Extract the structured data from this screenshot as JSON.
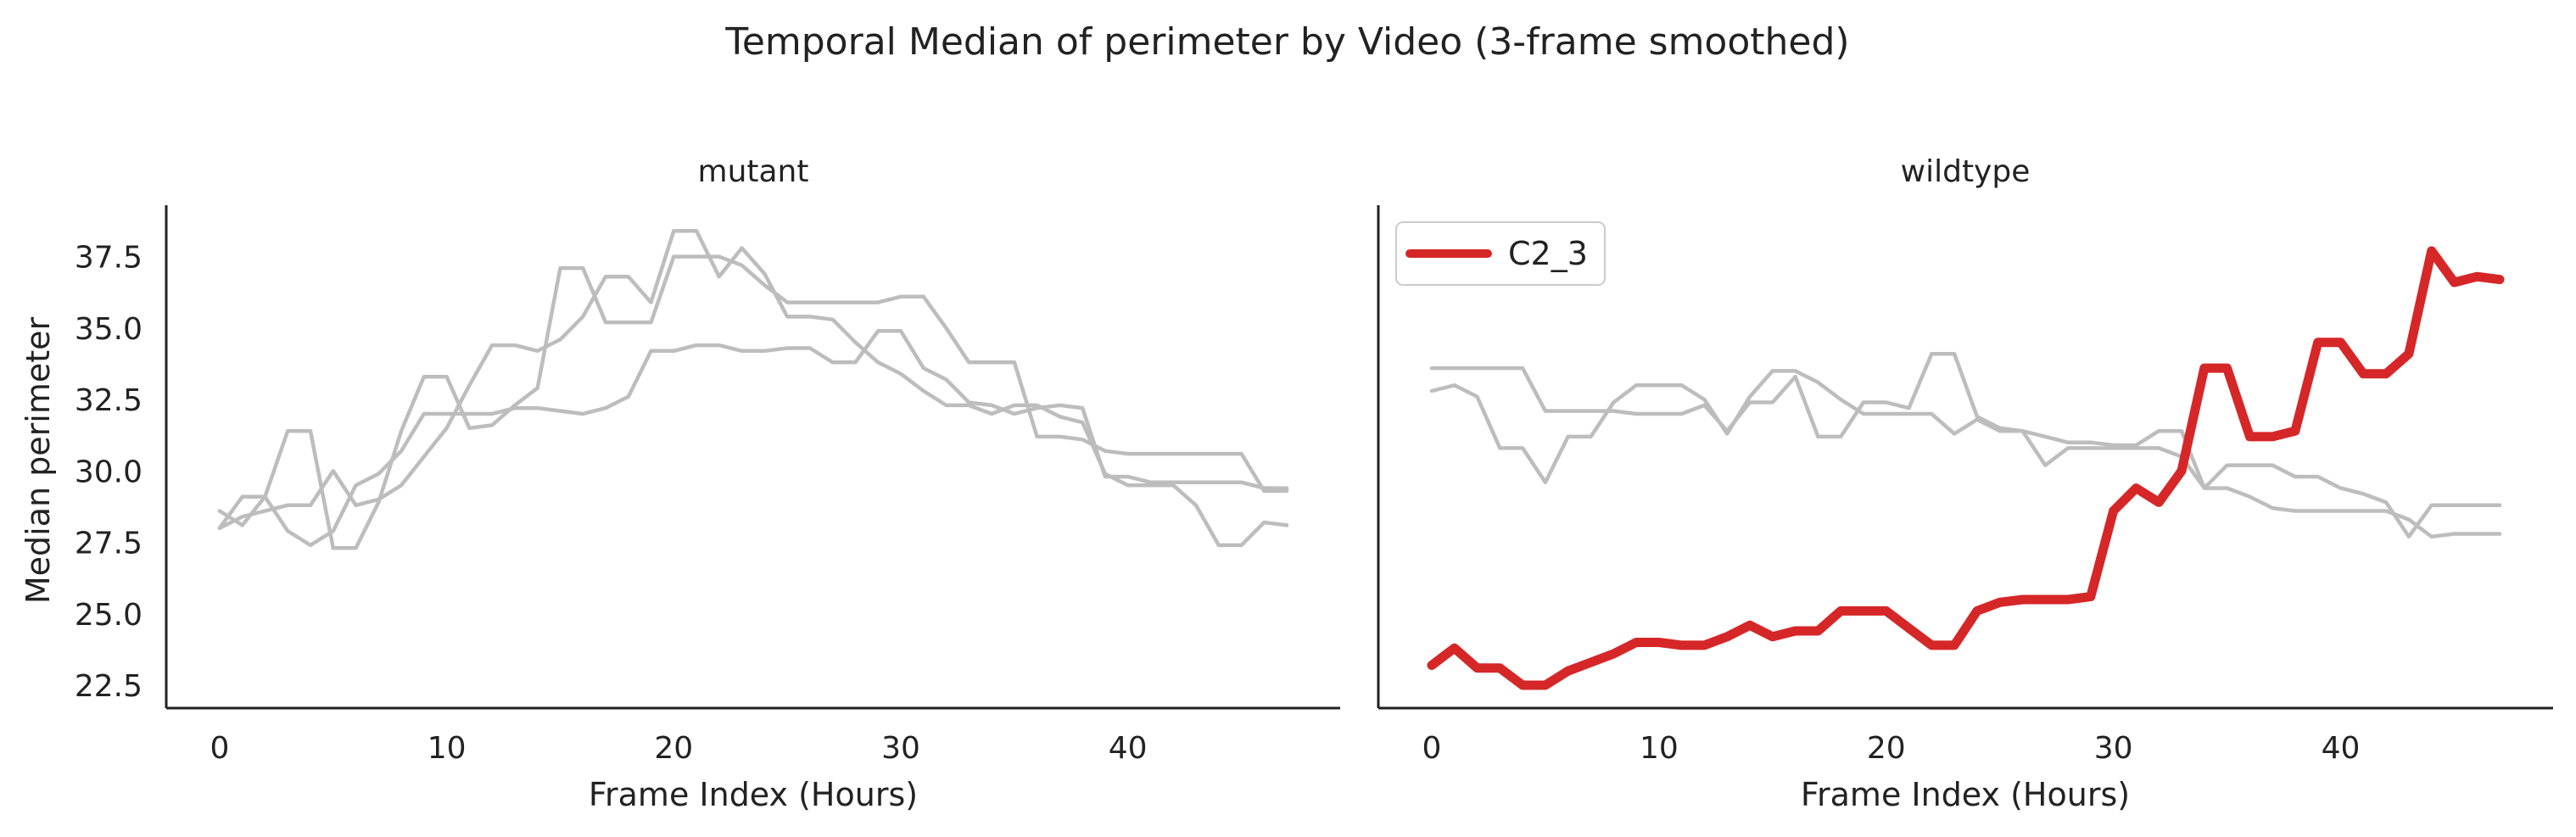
{
  "figure_title": "Temporal Median of perimeter by Video (3-frame smoothed)",
  "chart_data": [
    {
      "type": "line",
      "title": "mutant",
      "xlabel": "Frame Index (Hours)",
      "ylabel": "Median perimeter",
      "xlim": [
        -2.35,
        49.35
      ],
      "ylim": [
        21.7,
        39.3
      ],
      "xticks": [
        0,
        10,
        20,
        30,
        40
      ],
      "xtick_labels": [
        "0",
        "10",
        "20",
        "30",
        "40"
      ],
      "yticks": [
        22.5,
        25.0,
        27.5,
        30.0,
        32.5,
        35.0,
        37.5
      ],
      "ytick_labels": [
        "22.5",
        "25.0",
        "27.5",
        "30.0",
        "32.5",
        "35.0",
        "37.5"
      ],
      "grid": false,
      "series": [
        {
          "color": "#bdbdbd",
          "highlight": false,
          "x": [
            0,
            1,
            2,
            3,
            4,
            5,
            6,
            7,
            8,
            9,
            10,
            11,
            12,
            13,
            14,
            15,
            16,
            17,
            18,
            19,
            20,
            21,
            22,
            23,
            24,
            25,
            26,
            27,
            28,
            29,
            30,
            31,
            32,
            33,
            34,
            35,
            36,
            37,
            38,
            39,
            40,
            41,
            42,
            43,
            44,
            45,
            46,
            47
          ],
          "y": [
            28.6,
            28.1,
            29.1,
            31.4,
            31.4,
            27.3,
            27.3,
            28.9,
            31.4,
            33.3,
            33.3,
            31.5,
            31.6,
            32.3,
            32.9,
            37.1,
            37.1,
            35.2,
            35.2,
            35.2,
            37.5,
            37.5,
            37.5,
            37.2,
            36.5,
            35.9,
            35.9,
            35.9,
            35.9,
            35.9,
            36.1,
            36.1,
            35.0,
            33.8,
            33.8,
            33.8,
            31.2,
            31.2,
            31.1,
            30.7,
            30.6,
            30.6,
            30.6,
            30.6,
            30.6,
            30.6,
            29.3,
            29.3
          ]
        },
        {
          "color": "#bdbdbd",
          "highlight": false,
          "x": [
            0,
            1,
            2,
            3,
            4,
            5,
            6,
            7,
            8,
            9,
            10,
            11,
            12,
            13,
            14,
            15,
            16,
            17,
            18,
            19,
            20,
            21,
            22,
            23,
            24,
            25,
            26,
            27,
            28,
            29,
            30,
            31,
            32,
            33,
            34,
            35,
            36,
            37,
            38,
            39,
            40,
            41,
            42,
            43,
            44,
            45,
            46,
            47
          ],
          "y": [
            28.0,
            29.1,
            29.1,
            27.9,
            27.4,
            27.9,
            29.5,
            29.9,
            30.7,
            32.0,
            32.0,
            32.0,
            32.0,
            32.2,
            32.2,
            32.1,
            32.0,
            32.2,
            32.6,
            34.2,
            34.2,
            34.4,
            34.4,
            34.2,
            34.2,
            34.3,
            34.3,
            33.8,
            33.8,
            34.9,
            34.9,
            33.6,
            33.2,
            32.4,
            32.3,
            32.0,
            32.2,
            32.3,
            32.2,
            29.8,
            29.8,
            29.6,
            29.6,
            29.6,
            29.6,
            29.6,
            29.4,
            29.4
          ]
        },
        {
          "color": "#bdbdbd",
          "highlight": false,
          "x": [
            0,
            1,
            2,
            3,
            4,
            5,
            6,
            7,
            8,
            9,
            10,
            11,
            12,
            13,
            14,
            15,
            16,
            17,
            18,
            19,
            20,
            21,
            22,
            23,
            24,
            25,
            26,
            27,
            28,
            29,
            30,
            31,
            32,
            33,
            34,
            35,
            36,
            37,
            38,
            39,
            40,
            41,
            42,
            43,
            44,
            45,
            46,
            47
          ],
          "y": [
            28.0,
            28.4,
            28.6,
            28.8,
            28.8,
            30.0,
            28.8,
            29.0,
            29.5,
            30.5,
            31.5,
            33.0,
            34.4,
            34.4,
            34.2,
            34.6,
            35.4,
            36.8,
            36.8,
            35.9,
            38.4,
            38.4,
            36.8,
            37.8,
            36.9,
            35.4,
            35.4,
            35.3,
            34.5,
            33.8,
            33.4,
            32.8,
            32.3,
            32.3,
            32.0,
            32.3,
            32.3,
            31.9,
            31.7,
            29.9,
            29.5,
            29.5,
            29.5,
            28.8,
            27.4,
            27.4,
            28.2,
            28.1
          ]
        }
      ]
    },
    {
      "type": "line",
      "title": "wildtype",
      "xlabel": "Frame Index (Hours)",
      "ylabel": "",
      "xlim": [
        -2.35,
        49.35
      ],
      "ylim": [
        21.7,
        39.3
      ],
      "xticks": [
        0,
        10,
        20,
        30,
        40
      ],
      "xtick_labels": [
        "0",
        "10",
        "20",
        "30",
        "40"
      ],
      "grid": false,
      "legend": {
        "position": "top-left",
        "entries": [
          {
            "label": "C2_3",
            "color": "#d62728"
          }
        ]
      },
      "series": [
        {
          "color": "#bdbdbd",
          "highlight": false,
          "x": [
            0,
            1,
            2,
            3,
            4,
            5,
            6,
            7,
            8,
            9,
            10,
            11,
            12,
            13,
            14,
            15,
            16,
            17,
            18,
            19,
            20,
            21,
            22,
            23,
            24,
            25,
            26,
            27,
            28,
            29,
            30,
            31,
            32,
            33,
            34,
            35,
            36,
            37,
            38,
            39,
            40,
            41,
            42,
            43,
            44,
            45,
            46,
            47
          ],
          "y": [
            33.6,
            33.6,
            33.6,
            33.6,
            33.6,
            32.1,
            32.1,
            32.1,
            32.1,
            32.0,
            32.0,
            32.0,
            32.3,
            31.4,
            32.4,
            32.4,
            33.3,
            31.2,
            31.2,
            32.4,
            32.4,
            32.2,
            34.1,
            34.1,
            31.9,
            31.5,
            31.4,
            31.2,
            31.0,
            31.0,
            30.9,
            30.9,
            31.4,
            31.4,
            29.4,
            30.2,
            30.2,
            30.2,
            29.8,
            29.8,
            29.4,
            29.2,
            28.9,
            27.7,
            28.8,
            28.8,
            28.8,
            28.8
          ]
        },
        {
          "color": "#bdbdbd",
          "highlight": false,
          "x": [
            0,
            1,
            2,
            3,
            4,
            5,
            6,
            7,
            8,
            9,
            10,
            11,
            12,
            13,
            14,
            15,
            16,
            17,
            18,
            19,
            20,
            21,
            22,
            23,
            24,
            25,
            26,
            27,
            28,
            29,
            30,
            31,
            32,
            33,
            34,
            35,
            36,
            37,
            38,
            39,
            40,
            41,
            42,
            43,
            44,
            45,
            46,
            47
          ],
          "y": [
            32.8,
            33.0,
            32.6,
            30.8,
            30.8,
            29.6,
            31.2,
            31.2,
            32.4,
            33.0,
            33.0,
            33.0,
            32.5,
            31.3,
            32.6,
            33.5,
            33.5,
            33.1,
            32.5,
            32.0,
            32.0,
            32.0,
            32.0,
            31.3,
            31.8,
            31.4,
            31.4,
            30.2,
            30.8,
            30.8,
            30.8,
            30.8,
            30.8,
            30.5,
            29.4,
            29.4,
            29.1,
            28.7,
            28.6,
            28.6,
            28.6,
            28.6,
            28.6,
            28.3,
            27.7,
            27.8,
            27.8,
            27.8
          ]
        },
        {
          "name": "C2_3",
          "color": "#d62728",
          "highlight": true,
          "x": [
            0,
            1,
            2,
            3,
            4,
            5,
            6,
            7,
            8,
            9,
            10,
            11,
            12,
            13,
            14,
            15,
            16,
            17,
            18,
            19,
            20,
            21,
            22,
            23,
            24,
            25,
            26,
            27,
            28,
            29,
            30,
            31,
            32,
            33,
            34,
            35,
            36,
            37,
            38,
            39,
            40,
            41,
            42,
            43,
            44,
            45,
            46,
            47
          ],
          "y": [
            23.2,
            23.8,
            23.1,
            23.1,
            22.5,
            22.5,
            23.0,
            23.3,
            23.6,
            24.0,
            24.0,
            23.9,
            23.9,
            24.2,
            24.6,
            24.2,
            24.4,
            24.4,
            25.1,
            25.1,
            25.1,
            24.5,
            23.9,
            23.9,
            25.1,
            25.4,
            25.5,
            25.5,
            25.5,
            25.6,
            28.6,
            29.4,
            28.9,
            30.0,
            33.6,
            33.6,
            31.2,
            31.2,
            31.4,
            34.5,
            34.5,
            33.4,
            33.4,
            34.1,
            37.7,
            36.6,
            36.8,
            36.7
          ]
        }
      ]
    }
  ]
}
